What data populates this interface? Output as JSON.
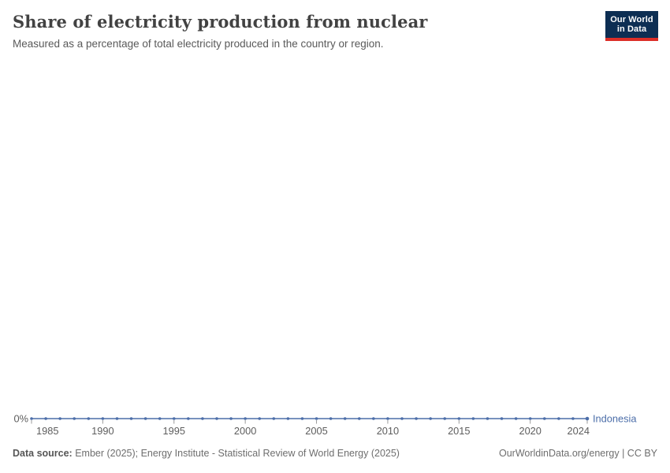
{
  "header": {
    "title": "Share of electricity production from nuclear",
    "subtitle": "Measured as a percentage of total electricity produced in the country or region.",
    "logo": {
      "line1": "Our World",
      "line2": "in Data",
      "bg_color": "#0d2e53",
      "bar_color": "#dc2e27"
    }
  },
  "chart_data": {
    "type": "line",
    "title": "Share of electricity production from nuclear",
    "subtitle": "Measured as a percentage of total electricity produced in the country or region.",
    "x": [
      1985,
      1986,
      1987,
      1988,
      1989,
      1990,
      1991,
      1992,
      1993,
      1994,
      1995,
      1996,
      1997,
      1998,
      1999,
      2000,
      2001,
      2002,
      2003,
      2004,
      2005,
      2006,
      2007,
      2008,
      2009,
      2010,
      2011,
      2012,
      2013,
      2014,
      2015,
      2016,
      2017,
      2018,
      2019,
      2020,
      2021,
      2022,
      2023,
      2024
    ],
    "series": [
      {
        "name": "Indonesia",
        "color": "#4C6EA9",
        "values": [
          0,
          0,
          0,
          0,
          0,
          0,
          0,
          0,
          0,
          0,
          0,
          0,
          0,
          0,
          0,
          0,
          0,
          0,
          0,
          0,
          0,
          0,
          0,
          0,
          0,
          0,
          0,
          0,
          0,
          0,
          0,
          0,
          0,
          0,
          0,
          0,
          0,
          0,
          0,
          0
        ]
      }
    ],
    "x_ticks": [
      1985,
      1990,
      1995,
      2000,
      2005,
      2010,
      2015,
      2020,
      2024
    ],
    "y_ticks": [
      0
    ],
    "y_tick_labels": [
      "0%"
    ],
    "xlim": [
      1985,
      2024
    ],
    "ylim": [
      0,
      100
    ],
    "grid": false,
    "legend_position": "end-of-line",
    "marker": "dot",
    "tick_color": "#9b9b9b",
    "tick_label_color": "#5d5d5d"
  },
  "footer": {
    "data_source_label": "Data source:",
    "data_source_value": " Ember (2025); Energy Institute - Statistical Review of World Energy (2025)",
    "credit": "OurWorldinData.org/energy | CC BY"
  }
}
